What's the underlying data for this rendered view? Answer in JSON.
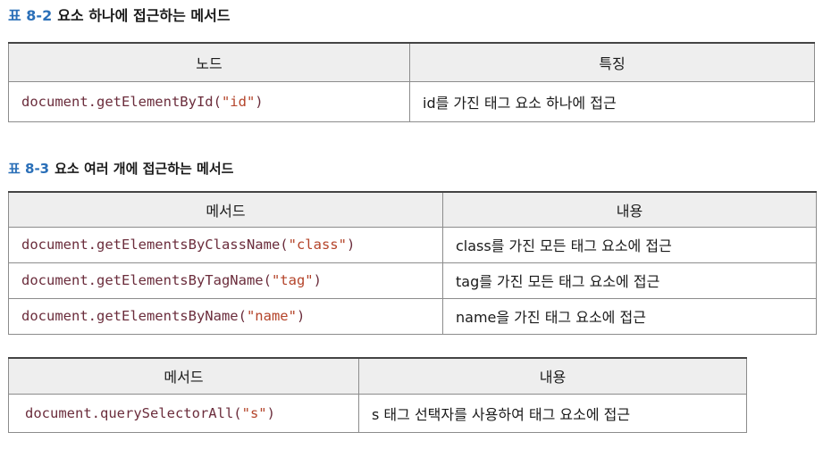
{
  "t1": {
    "num": "표 8-2",
    "title": "요소 하나에 접근하는 메서드",
    "headers": [
      "노드",
      "특징"
    ],
    "rows": [
      {
        "fn": "document.getElementById(",
        "arg": "\"id\"",
        "close": ")",
        "desc": "id를 가진 태그 요소 하나에 접근"
      }
    ]
  },
  "t2": {
    "num": "표 8-3",
    "title": "요소 여러 개에 접근하는 메서드",
    "headers": [
      "메서드",
      "내용"
    ],
    "rows": [
      {
        "fn": "document.getElementsByClassName(",
        "arg": "\"class\"",
        "close": ")",
        "desc": "class를 가진 모든 태그 요소에 접근"
      },
      {
        "fn": "document.getElementsByTagName(",
        "arg": "\"tag\"",
        "close": ")",
        "desc": "tag를 가진 모든 태그 요소에 접근"
      },
      {
        "fn": "document.getElementsByName(",
        "arg": "\"name\"",
        "close": ")",
        "desc": "name을 가진 태그 요소에 접근"
      }
    ]
  },
  "t3": {
    "headers": [
      "메서드",
      "내용"
    ],
    "rows": [
      {
        "fn": "document.querySelectorAll(",
        "arg": "\"s\"",
        "close": ")",
        "desc": "s 태그 선택자를 사용하여 태그 요소에 접근"
      }
    ]
  }
}
